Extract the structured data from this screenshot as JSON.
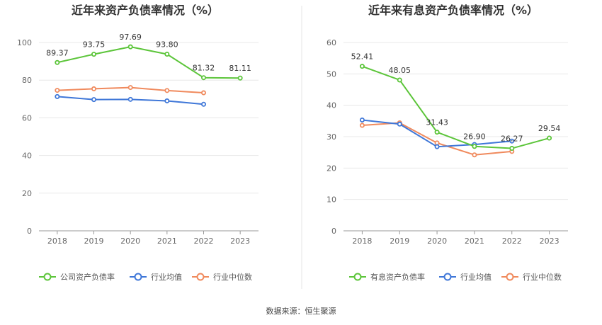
{
  "source_label": "数据来源：恒生聚源",
  "chart_data": [
    {
      "type": "line",
      "title": "近年来资产负债率情况（%）",
      "categories": [
        "2018",
        "2019",
        "2020",
        "2021",
        "2022",
        "2023"
      ],
      "ylim": [
        0,
        100
      ],
      "yticks": [
        0,
        20,
        40,
        60,
        80,
        100
      ],
      "grid": true,
      "legend_position": "bottom",
      "series": [
        {
          "name": "公司资产负债率",
          "color": "#5cc53a",
          "values": [
            89.37,
            93.75,
            97.69,
            93.8,
            81.32,
            81.11
          ],
          "labels": [
            "89.37",
            "93.75",
            "97.69",
            "93.80",
            "81.32",
            "81.11"
          ]
        },
        {
          "name": "行业均值",
          "color": "#3f77d8",
          "values": [
            71.3,
            69.7,
            69.8,
            69.0,
            67.2,
            null
          ]
        },
        {
          "name": "行业中位数",
          "color": "#f08a5d",
          "values": [
            74.6,
            75.4,
            76.1,
            74.5,
            73.3,
            null
          ]
        }
      ]
    },
    {
      "type": "line",
      "title": "近年来有息资产负债率情况（%）",
      "categories": [
        "2018",
        "2019",
        "2020",
        "2021",
        "2022",
        "2023"
      ],
      "ylim": [
        0,
        60
      ],
      "yticks": [
        0,
        10,
        20,
        30,
        40,
        50,
        60
      ],
      "grid": true,
      "legend_position": "bottom",
      "series": [
        {
          "name": "有息资产负债率",
          "color": "#5cc53a",
          "values": [
            52.41,
            48.05,
            31.43,
            26.9,
            26.27,
            29.54
          ],
          "labels": [
            "52.41",
            "48.05",
            "31.43",
            "26.90",
            "26.27",
            "29.54"
          ]
        },
        {
          "name": "行业均值",
          "color": "#3f77d8",
          "values": [
            35.3,
            34.0,
            26.8,
            27.5,
            28.6,
            null
          ]
        },
        {
          "name": "行业中位数",
          "color": "#f08a5d",
          "values": [
            33.6,
            34.4,
            28.0,
            24.2,
            25.3,
            null
          ]
        }
      ]
    }
  ]
}
